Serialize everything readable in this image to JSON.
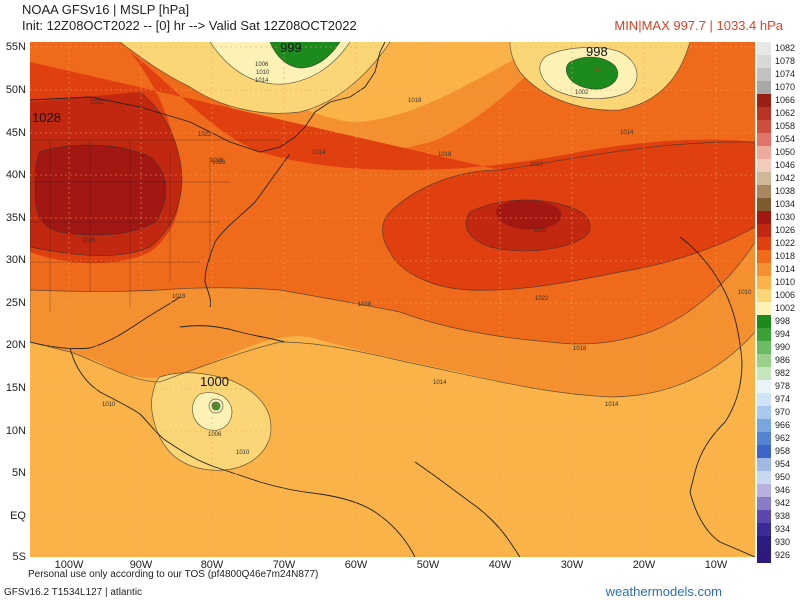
{
  "header": {
    "title": "NOAA GFSv16 | MSLP [hPa]",
    "init": "Init: 12Z08OCT2022 -- [0] hr --> Valid Sat 12Z08OCT2022",
    "minmax": "MIN|MAX 997.7 | 1033.4 hPa"
  },
  "map": {
    "lat_labels": [
      "55N",
      "50N",
      "45N",
      "40N",
      "35N",
      "30N",
      "25N",
      "20N",
      "15N",
      "10N",
      "5N",
      "EQ",
      "5S"
    ],
    "lon_labels": [
      "100W",
      "90W",
      "80W",
      "70W",
      "60W",
      "50W",
      "40W",
      "30W",
      "20W",
      "10W"
    ],
    "pressure_centers": [
      {
        "label": "999"
      },
      {
        "label": "998"
      },
      {
        "label": "1028"
      },
      {
        "label": "1000"
      }
    ],
    "isobar_labels": [
      "1018",
      "1014",
      "1018",
      "1022",
      "1026",
      "1018",
      "1022",
      "1018",
      "1014",
      "1010",
      "1014",
      "1010",
      "1006",
      "1010",
      "1026",
      "1022",
      "1026",
      "1014",
      "1010",
      "1006",
      "1002",
      "1014",
      "1018",
      "1022",
      "1026"
    ]
  },
  "colorbar": {
    "levels": [
      "1082",
      "1078",
      "1074",
      "1070",
      "1066",
      "1062",
      "1058",
      "1054",
      "1050",
      "1046",
      "1042",
      "1038",
      "1034",
      "1030",
      "1026",
      "1022",
      "1018",
      "1014",
      "1010",
      "1006",
      "1002",
      "998",
      "994",
      "990",
      "986",
      "982",
      "978",
      "974",
      "970",
      "966",
      "962",
      "958",
      "954",
      "950",
      "946",
      "942",
      "938",
      "934",
      "930",
      "926"
    ],
    "colors": [
      "#e8e8e8",
      "#d8d8d8",
      "#c2c2c2",
      "#a8a8a8",
      "#9a1f14",
      "#b93326",
      "#cf4f3e",
      "#e0746a",
      "#edaa9d",
      "#f3cbbd",
      "#cfb799",
      "#a8875e",
      "#7e5a2e",
      "#a31712",
      "#c2270f",
      "#e0400f",
      "#f06a1b",
      "#f59030",
      "#f9b348",
      "#fbd676",
      "#fcf2b6",
      "#1c8a1c",
      "#3aa136",
      "#6abb62",
      "#9bd08c",
      "#c6e6bd",
      "#e8f4f8",
      "#cfe4f6",
      "#a8c8ee",
      "#7aa6e0",
      "#5583d4",
      "#3d64c8",
      "#9fb8e6",
      "#c8d8f0",
      "#b8b0e0",
      "#8a7cc8",
      "#5a48b0",
      "#3a2c98",
      "#2a1c80",
      "#2c1a7e"
    ]
  },
  "footer": {
    "use": "Personal use only according to our TOS (pf4800Q46e7m24N877)",
    "model": "GFSv16.2 T1534L127 | atlantic",
    "brand": "weathermodels.com"
  }
}
